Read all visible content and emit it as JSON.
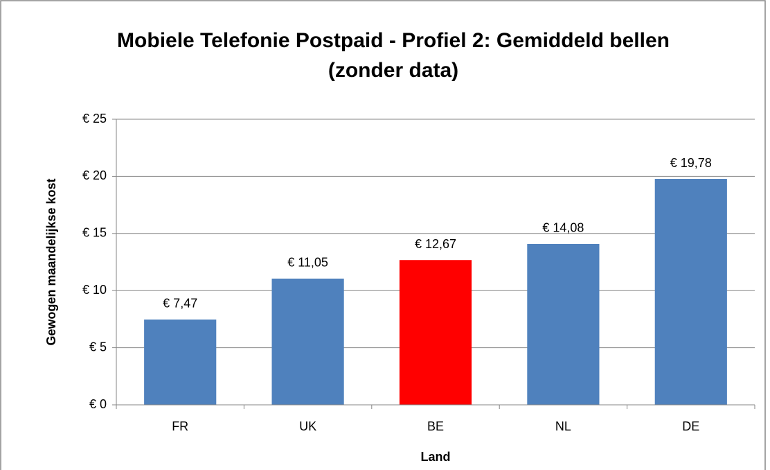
{
  "chart_data": {
    "type": "bar",
    "title": [
      "Mobiele Telefonie Postpaid - Profiel 2: Gemiddeld bellen",
      "(zonder data)"
    ],
    "x_label": "Land",
    "y_label": "Gewogen maandelijkse kost",
    "categories": [
      "FR",
      "UK",
      "BE",
      "NL",
      "DE"
    ],
    "values": [
      7.47,
      11.05,
      12.67,
      14.08,
      19.78
    ],
    "value_labels": [
      "€ 7,47",
      "€ 11,05",
      "€ 12,67",
      "€ 14,08",
      "€ 19,78"
    ],
    "colors": [
      "#4f81bd",
      "#4f81bd",
      "#ff0000",
      "#4f81bd",
      "#4f81bd"
    ],
    "ylim": [
      0,
      25
    ],
    "yticks": [
      {
        "value": 0,
        "label": "€ 0"
      },
      {
        "value": 5,
        "label": "€ 5"
      },
      {
        "value": 10,
        "label": "€ 10"
      },
      {
        "value": 15,
        "label": "€ 15"
      },
      {
        "value": 20,
        "label": "€ 20"
      },
      {
        "value": 25,
        "label": "€ 25"
      }
    ],
    "grid": true
  }
}
